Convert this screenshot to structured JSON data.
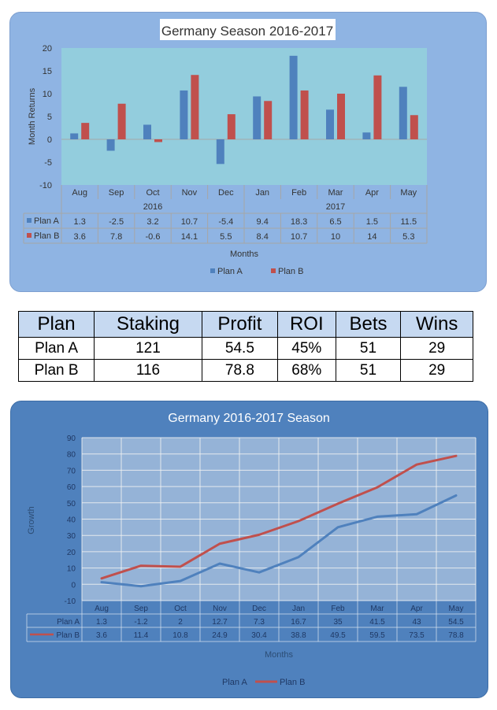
{
  "chart_data": [
    {
      "type": "bar",
      "title": "Germany Season 2016-2017",
      "categories": [
        "Aug",
        "Sep",
        "Oct",
        "Nov",
        "Dec",
        "Jan",
        "Feb",
        "Mar",
        "Apr",
        "May"
      ],
      "category_groups": [
        {
          "label": "2016",
          "from": 0,
          "to": 4
        },
        {
          "label": "2017",
          "from": 5,
          "to": 9
        }
      ],
      "series": [
        {
          "name": "Plan A",
          "color": "#4f81bd",
          "values": [
            1.3,
            -2.5,
            3.2,
            10.7,
            -5.4,
            9.4,
            18.3,
            6.5,
            1.5,
            11.5
          ]
        },
        {
          "name": "Plan B",
          "color": "#c0504d",
          "values": [
            3.6,
            7.8,
            -0.6,
            14.1,
            5.5,
            8.4,
            10.7,
            10,
            14,
            5.3
          ]
        }
      ],
      "xlabel": "Months",
      "ylabel": "Month Returns",
      "ylim": [
        -10,
        20
      ],
      "yticks": [
        "20",
        "15",
        "10",
        "5",
        "0",
        "-5",
        "-10"
      ],
      "data_table_values": [
        [
          "1.3",
          "-2.5",
          "3.2",
          "10.7",
          "-5.4",
          "9.4",
          "18.3",
          "6.5",
          "1.5",
          "11.5"
        ],
        [
          "3.6",
          "7.8",
          "-0.6",
          "14.1",
          "5.5",
          "8.4",
          "10.7",
          "10",
          "14",
          "5.3"
        ]
      ],
      "legend": "bottom",
      "grid": false
    },
    {
      "type": "line",
      "title": "Germany 2016-2017 Season",
      "categories": [
        "Aug",
        "Sep",
        "Oct",
        "Nov",
        "Dec",
        "Jan",
        "Feb",
        "Mar",
        "Apr",
        "May"
      ],
      "series": [
        {
          "name": "Plan A",
          "color": "#4f81bd",
          "values": [
            1.3,
            -1.2,
            2,
            12.7,
            7.3,
            16.7,
            35,
            41.5,
            43,
            54.5
          ]
        },
        {
          "name": "Plan B",
          "color": "#c0504d",
          "values": [
            3.6,
            11.4,
            10.8,
            24.9,
            30.4,
            38.8,
            49.5,
            59.5,
            73.5,
            78.8
          ]
        }
      ],
      "xlabel": "Months",
      "ylabel": "Growth",
      "ylim": [
        -10,
        90
      ],
      "yticks": [
        "90",
        "80",
        "70",
        "60",
        "50",
        "40",
        "30",
        "20",
        "10",
        "0",
        "-10"
      ],
      "data_table_values": [
        [
          "1.3",
          "-1.2",
          "2",
          "12.7",
          "7.3",
          "16.7",
          "35",
          "41.5",
          "43",
          "54.5"
        ],
        [
          "3.6",
          "11.4",
          "10.8",
          "24.9",
          "30.4",
          "38.8",
          "49.5",
          "59.5",
          "73.5",
          "78.8"
        ]
      ],
      "legend": "bottom",
      "grid": true
    }
  ],
  "summary_table": {
    "headers": [
      "Plan",
      "Staking",
      "Profit",
      "ROI",
      "Bets",
      "Wins"
    ],
    "rows": [
      [
        "Plan A",
        "121",
        "54.5",
        "45%",
        "51",
        "29"
      ],
      [
        "Plan B",
        "116",
        "78.8",
        "68%",
        "51",
        "29"
      ]
    ]
  }
}
